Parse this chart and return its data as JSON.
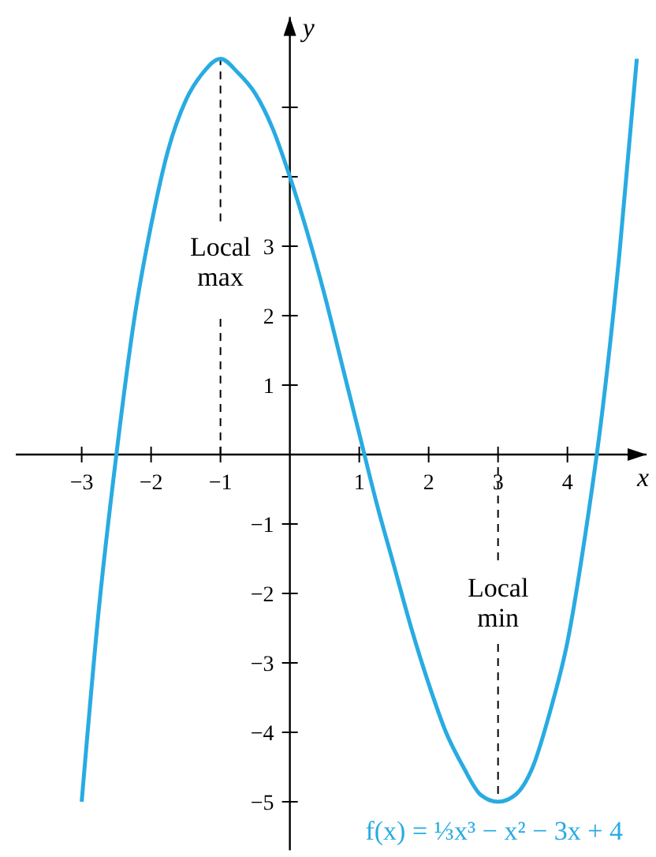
{
  "chart_data": {
    "type": "line",
    "xlabel": "x",
    "ylabel": "y",
    "xlim": [
      -3.95,
      5.14
    ],
    "ylim": [
      -5.7,
      6.3
    ],
    "xticks": [
      {
        "value": -3,
        "label": "−3"
      },
      {
        "value": -2,
        "label": "−2"
      },
      {
        "value": -1,
        "label": "−1"
      },
      {
        "value": 1,
        "label": "1"
      },
      {
        "value": 2,
        "label": "2"
      },
      {
        "value": 3,
        "label": "3"
      },
      {
        "value": 4,
        "label": "4"
      }
    ],
    "yticks": [
      {
        "value": -5,
        "label": "−5"
      },
      {
        "value": -4,
        "label": "−4"
      },
      {
        "value": -3,
        "label": "−3"
      },
      {
        "value": -2,
        "label": "−2"
      },
      {
        "value": -1,
        "label": "−1"
      },
      {
        "value": 1,
        "label": "1"
      },
      {
        "value": 2,
        "label": "2"
      },
      {
        "value": 3,
        "label": "3"
      },
      {
        "value": 4,
        "label": null
      },
      {
        "value": 5,
        "label": null
      }
    ],
    "grid": false,
    "marker": "none",
    "line_style": "solid",
    "x": [
      -3,
      -2.75,
      -2.5,
      -2.25,
      -2,
      -1.75,
      -1.5,
      -1.25,
      -1,
      -0.75,
      -0.5,
      -0.25,
      0,
      0.25,
      0.5,
      0.75,
      1,
      1.25,
      1.5,
      1.75,
      2,
      2.25,
      2.5,
      2.75,
      3,
      3.25,
      3.5,
      3.75,
      4,
      4.25,
      4.5,
      4.75,
      5
    ],
    "series": [
      {
        "name": "f(x) = ⅓x³ − x² − 3x + 4",
        "color": "#29abe2",
        "values": [
          -5,
          -2.2,
          0.0,
          1.9,
          3.3,
          4.4,
          5.1,
          5.5,
          5.7,
          5.5,
          5.2,
          4.7,
          4,
          3.2,
          2.3,
          1.3,
          0.3,
          -0.7,
          -1.6,
          -2.5,
          -3.3,
          -4.0,
          -4.5,
          -4.9,
          -5,
          -4.9,
          -4.5,
          -3.7,
          -2.7,
          -1.2,
          0.6,
          2.9,
          5.7
        ]
      }
    ],
    "annotations": [
      {
        "text": "Local max",
        "x": -1,
        "y": 5.7
      },
      {
        "text": "Local min",
        "x": 3,
        "y": -5
      }
    ]
  }
}
